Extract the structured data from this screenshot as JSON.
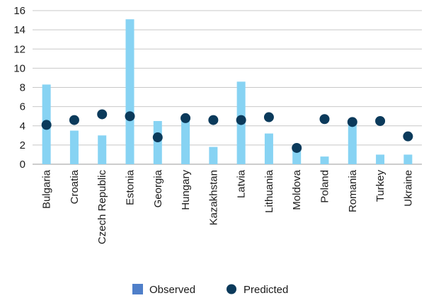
{
  "chart_data": {
    "type": "bar",
    "categories": [
      "Bulgaria",
      "Croatia",
      "Czech Republic",
      "Estonia",
      "Georgia",
      "Hungary",
      "Kazakhstan",
      "Latvia",
      "Lithuania",
      "Moldova",
      "Poland",
      "Romania",
      "Turkey",
      "Ukraine"
    ],
    "series": [
      {
        "name": "Observed",
        "kind": "bar",
        "color": "#87d3f3",
        "values": [
          8.3,
          3.5,
          3.0,
          15.1,
          4.5,
          4.8,
          1.8,
          8.6,
          3.2,
          1.8,
          0.8,
          4.3,
          1.0,
          1.0
        ]
      },
      {
        "name": "Predicted",
        "kind": "marker",
        "color": "#0b3a5b",
        "values": [
          4.1,
          4.6,
          5.2,
          5.0,
          2.8,
          4.8,
          4.6,
          4.6,
          4.9,
          1.7,
          4.7,
          4.4,
          4.5,
          2.9
        ]
      }
    ],
    "ylim": [
      0,
      16
    ],
    "yticks": [
      0,
      2,
      4,
      6,
      8,
      10,
      12,
      14,
      16
    ],
    "grid": true,
    "legend": {
      "position": "bottom",
      "items": [
        {
          "label": "Observed",
          "marker": "square",
          "color": "#4f7fc9"
        },
        {
          "label": "Predicted",
          "marker": "circle",
          "color": "#0b3a5b"
        }
      ]
    },
    "title": "",
    "xlabel": "",
    "ylabel": ""
  }
}
